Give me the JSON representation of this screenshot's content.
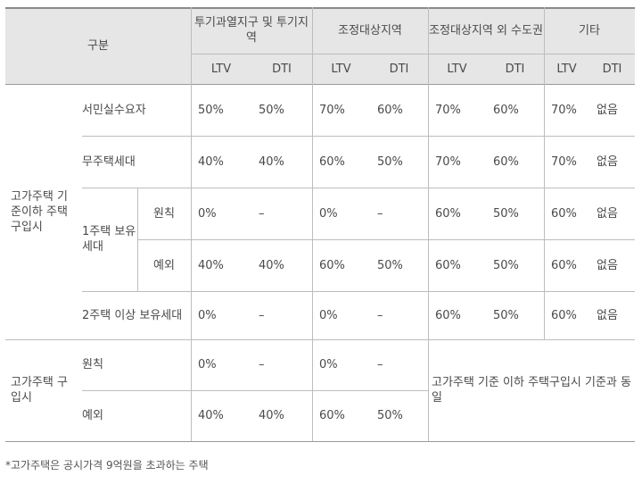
{
  "header": {
    "category": "구분",
    "groups": [
      "투기과열지구 및 투기지역",
      "조정대상지역",
      "조정대상지역 외 수도권",
      "기타"
    ],
    "sub": [
      "LTV",
      "DTI"
    ]
  },
  "section1": {
    "label": "고가주택 기준이하 주택 구입시",
    "rows": [
      {
        "name": "서민실수요자",
        "values": [
          "50%",
          "50%",
          "70%",
          "60%",
          "70%",
          "60%",
          "70%",
          "없음"
        ]
      },
      {
        "name": "무주택세대",
        "values": [
          "40%",
          "40%",
          "60%",
          "50%",
          "70%",
          "60%",
          "70%",
          "없음"
        ]
      },
      {
        "name": "1주택 보유세대",
        "sub": "원칙",
        "values": [
          "0%",
          "–",
          "0%",
          "–",
          "60%",
          "50%",
          "60%",
          "없음"
        ]
      },
      {
        "sub": "예외",
        "values": [
          "40%",
          "40%",
          "60%",
          "50%",
          "60%",
          "50%",
          "60%",
          "없음"
        ]
      },
      {
        "name": "2주택 이상 보유세대",
        "values": [
          "0%",
          "–",
          "0%",
          "–",
          "60%",
          "50%",
          "60%",
          "없음"
        ]
      }
    ]
  },
  "section2": {
    "label": "고가주택 구입시",
    "rows": [
      {
        "name": "원칙",
        "values": [
          "0%",
          "–",
          "0%",
          "–"
        ]
      },
      {
        "name": "예외",
        "values": [
          "40%",
          "40%",
          "60%",
          "50%"
        ]
      }
    ],
    "merged_note": "고가주택 기준 이하 주택구입시 기준과 동일"
  },
  "footnote": "*고가주택은 공시가격 9억원을 초과하는 주택"
}
